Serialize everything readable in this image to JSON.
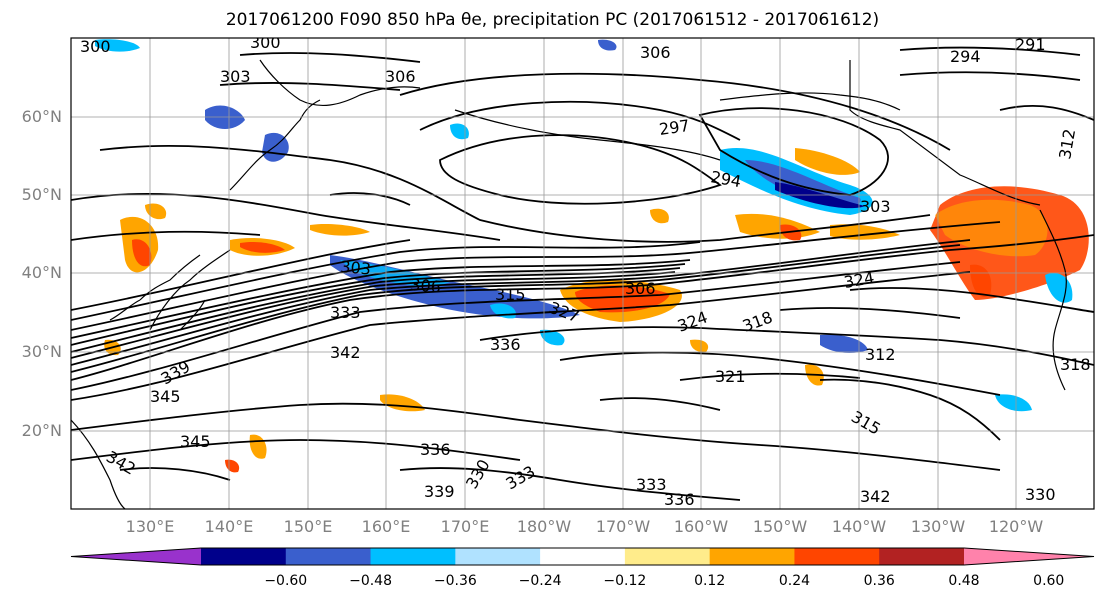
{
  "title": "2017061200 F090 850 hPa θe, precipitation PC (2017061512 - 2017061612)",
  "map": {
    "lat_labels": [
      "60°N",
      "50°N",
      "40°N",
      "30°N",
      "20°N"
    ],
    "lon_labels": [
      "130°E",
      "140°E",
      "150°E",
      "160°E",
      "170°E",
      "180°W",
      "170°W",
      "160°W",
      "150°W",
      "140°W",
      "130°W",
      "120°W"
    ],
    "contour_labels": [
      "300",
      "300",
      "303",
      "306",
      "306",
      "294",
      "291",
      "297",
      "294",
      "303",
      "303",
      "306",
      "306",
      "315",
      "327",
      "324",
      "318",
      "324",
      "333",
      "342",
      "336",
      "321",
      "312",
      "318",
      "345",
      "339",
      "345",
      "342",
      "336",
      "330",
      "333",
      "339",
      "333",
      "336",
      "342",
      "330",
      "312",
      "315"
    ],
    "colors": {
      "contour": "#000000",
      "coast": "#000000",
      "grid": "#999999",
      "axis_label": "#808080"
    }
  },
  "colorbar": {
    "ticks": [
      "−0.60",
      "−0.48",
      "−0.36",
      "−0.24",
      "−0.12",
      "0.12",
      "0.24",
      "0.36",
      "0.48",
      "0.60"
    ],
    "colors": [
      "#9932cc",
      "#00008b",
      "#3a5fcd",
      "#00bfff",
      "#b0e2ff",
      "#ffffff",
      "#ffec8b",
      "#ffa500",
      "#ff4500",
      "#b22222",
      "#ff82ab"
    ]
  }
}
